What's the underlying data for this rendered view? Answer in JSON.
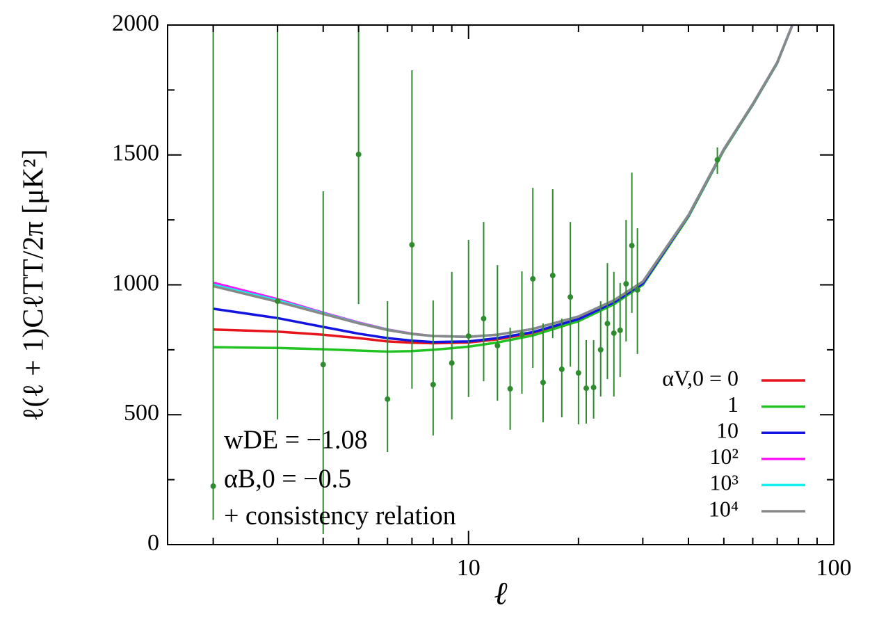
{
  "chart_data": {
    "type": "line",
    "xlabel": "ℓ",
    "ylabel": "ℓ(ℓ + 1)CℓTT/2π [μK²]",
    "annotations": [
      "wDE = −1.08",
      "αB,0 = −0.5",
      "+ consistency relation"
    ],
    "xscale": "log",
    "xlim": [
      1.5,
      100
    ],
    "xticks": [
      10,
      100
    ],
    "xminorticks": [
      2,
      3,
      4,
      5,
      6,
      7,
      8,
      9,
      20,
      30,
      40,
      50,
      60,
      70,
      80,
      90
    ],
    "ylim": [
      0,
      2000
    ],
    "yticks": [
      0,
      500,
      1000,
      1500,
      2000
    ],
    "yminorticks": [
      250,
      750,
      1250,
      1750
    ],
    "legend": "lower right",
    "x": [
      2,
      3,
      4,
      5,
      6,
      7,
      8,
      10,
      12,
      15,
      20,
      25,
      30,
      40,
      50,
      60,
      70,
      77
    ],
    "series": [
      {
        "name": "αV,0 = 0",
        "color": "#e8141c",
        "values": [
          828,
          820,
          808,
          795,
          782,
          777,
          775,
          778,
          790,
          815,
          865,
          930,
          1005,
          1266,
          1521,
          1695,
          1855,
          2000
        ]
      },
      {
        "name": "1",
        "color": "#22c322",
        "values": [
          760,
          757,
          752,
          747,
          743,
          745,
          750,
          762,
          778,
          805,
          860,
          925,
          1000,
          1262,
          1518,
          1693,
          1853,
          2000
        ]
      },
      {
        "name": "10",
        "color": "#1414e0",
        "values": [
          908,
          872,
          838,
          812,
          795,
          785,
          780,
          782,
          795,
          818,
          868,
          932,
          1005,
          1266,
          1521,
          1695,
          1855,
          2000
        ]
      },
      {
        "name": "10²",
        "color": "#ff14ff",
        "values": [
          1008,
          945,
          893,
          855,
          828,
          812,
          803,
          800,
          808,
          830,
          878,
          940,
          1012,
          1268,
          1522,
          1696,
          1856,
          2000
        ]
      },
      {
        "name": "10³",
        "color": "#14f0f0",
        "values": [
          1000,
          940,
          890,
          853,
          827,
          811,
          803,
          800,
          808,
          830,
          878,
          940,
          1012,
          1268,
          1522,
          1696,
          1856,
          2000
        ]
      },
      {
        "name": "10⁴",
        "color": "#888888",
        "values": [
          995,
          935,
          888,
          852,
          826,
          811,
          803,
          800,
          808,
          830,
          878,
          940,
          1012,
          1268,
          1522,
          1696,
          1856,
          2000
        ]
      }
    ],
    "points": {
      "color": "#2e8b2e",
      "x": [
        2,
        3,
        4,
        5,
        6,
        7,
        8,
        9,
        10,
        11,
        12,
        13,
        14,
        15,
        16,
        17,
        18,
        19,
        20,
        21,
        22,
        23,
        24,
        25,
        26,
        27,
        28,
        29,
        48
      ],
      "values": [
        225,
        937,
        693,
        1502,
        560,
        1154,
        616,
        699,
        803,
        870,
        766,
        600,
        809,
        1023,
        624,
        1036,
        675,
        953,
        661,
        602,
        605,
        750,
        851,
        814,
        825,
        1004,
        1151,
        980,
        1481
      ],
      "low": [
        95,
        482,
        40,
        926,
        356,
        600,
        420,
        482,
        568,
        629,
        554,
        442,
        581,
        680,
        471,
        795,
        490,
        685,
        463,
        466,
        485,
        570,
        637,
        570,
        645,
        782,
        892,
        734,
        1427
      ],
      "high": [
        2200,
        2200,
        1360,
        2200,
        937,
        1826,
        940,
        1050,
        1173,
        1242,
        1076,
        835,
        1052,
        1373,
        851,
        1368,
        870,
        1242,
        865,
        787,
        787,
        937,
        1084,
        1050,
        1007,
        1250,
        1432,
        1218,
        1529
      ]
    }
  }
}
